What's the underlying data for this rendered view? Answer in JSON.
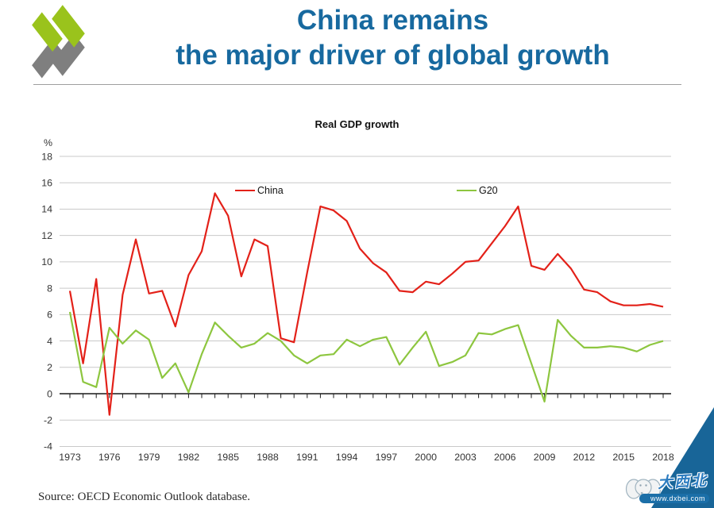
{
  "header": {
    "title_line1": "China remains",
    "title_line2": "the major driver of global growth"
  },
  "chart_data": {
    "type": "line",
    "title": "Real GDP growth",
    "ylabel": "%",
    "ylim": [
      -4,
      18
    ],
    "ytick_step": 2,
    "grid": true,
    "legend_position": "top-inside",
    "x": [
      1973,
      1974,
      1975,
      1976,
      1977,
      1978,
      1979,
      1980,
      1981,
      1982,
      1983,
      1984,
      1985,
      1986,
      1987,
      1988,
      1989,
      1990,
      1991,
      1992,
      1993,
      1994,
      1995,
      1996,
      1997,
      1998,
      1999,
      2000,
      2001,
      2002,
      2003,
      2004,
      2005,
      2006,
      2007,
      2008,
      2009,
      2010,
      2011,
      2012,
      2013,
      2014,
      2015,
      2016,
      2017,
      2018
    ],
    "xticks": [
      1973,
      1976,
      1979,
      1982,
      1985,
      1988,
      1991,
      1994,
      1997,
      2000,
      2003,
      2006,
      2009,
      2012,
      2015,
      2018
    ],
    "series": [
      {
        "name": "China",
        "color": "#e32119",
        "values": [
          7.8,
          2.3,
          8.7,
          -1.6,
          7.5,
          11.7,
          7.6,
          7.8,
          5.1,
          9.0,
          10.8,
          15.2,
          13.5,
          8.9,
          11.7,
          11.2,
          4.2,
          3.9,
          9.2,
          14.2,
          13.9,
          13.1,
          11.0,
          9.9,
          9.2,
          7.8,
          7.7,
          8.5,
          8.3,
          9.1,
          10.0,
          10.1,
          11.4,
          12.7,
          14.2,
          9.7,
          9.4,
          10.6,
          9.5,
          7.9,
          7.7,
          7.0,
          6.7,
          6.7,
          6.8,
          6.6
        ]
      },
      {
        "name": "G20",
        "color": "#8dc63f",
        "values": [
          6.2,
          0.9,
          0.5,
          5.0,
          3.8,
          4.8,
          4.1,
          1.2,
          2.3,
          0.1,
          3.0,
          5.4,
          4.4,
          3.5,
          3.8,
          4.6,
          4.0,
          2.9,
          2.3,
          2.9,
          3.0,
          4.1,
          3.6,
          4.1,
          4.3,
          2.2,
          3.5,
          4.7,
          2.1,
          2.4,
          2.9,
          4.6,
          4.5,
          4.9,
          5.2,
          2.3,
          -0.6,
          5.6,
          4.4,
          3.5,
          3.5,
          3.6,
          3.5,
          3.2,
          3.7,
          4.0
        ]
      }
    ]
  },
  "footer": {
    "source": "Source: OECD Economic Outlook database."
  },
  "watermark": {
    "cn_text": "大西北",
    "url": "www.dxbei.com"
  },
  "colors": {
    "title_blue": "#17699f",
    "china_red": "#e32119",
    "g20_green": "#8dc63f",
    "corner_triangle_blue": "#186598",
    "gridline_gray": "#c9c9c9",
    "logo_green": "#9ac31c",
    "logo_gray": "#7f7f7f"
  }
}
